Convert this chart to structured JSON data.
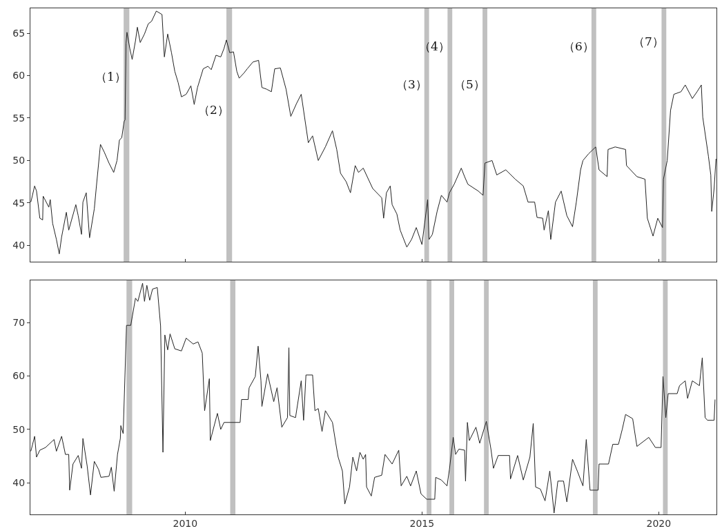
{
  "chart_data": [
    {
      "type": "line",
      "tick_labels": "y",
      "grid": false,
      "xlim": [
        2006.73,
        2021.22
      ],
      "xticks": [
        2010,
        2015,
        2020
      ],
      "ylim": [
        38.08,
        67.93
      ],
      "yticks": [
        40,
        45,
        50,
        55,
        60,
        65
      ],
      "bands": [
        {
          "axis": "x",
          "from": 2008.7,
          "to": 2008.82,
          "color": "#c0c0c0",
          "label": "（1）"
        },
        {
          "axis": "x",
          "from": 2010.87,
          "to": 2010.99,
          "color": "#c0c0c0",
          "label": "（2）"
        },
        {
          "axis": "x",
          "from": 2015.05,
          "to": 2015.15,
          "color": "#c0c0c0",
          "label": "（3）"
        },
        {
          "axis": "x",
          "from": 2015.54,
          "to": 2015.64,
          "color": "#c0c0c0",
          "label": "（4）"
        },
        {
          "axis": "x",
          "from": 2016.28,
          "to": 2016.38,
          "color": "#c0c0c0",
          "label": "（5）"
        },
        {
          "axis": "x",
          "from": 2018.58,
          "to": 2018.68,
          "color": "#c0c0c0",
          "label": "（6）"
        },
        {
          "axis": "x",
          "from": 2020.06,
          "to": 2020.16,
          "color": "#c0c0c0",
          "label": "（7）"
        }
      ],
      "series": [
        {
          "color": "#222222",
          "x": [
            2006.74,
            2006.82,
            2006.86,
            2006.93,
            2006.99,
            2007.0,
            2007.12,
            2007.15,
            2007.2,
            2007.28,
            2007.34,
            2007.39,
            2007.49,
            2007.54,
            2007.69,
            2007.74,
            2007.81,
            2007.84,
            2007.91,
            2007.98,
            2008.08,
            2008.12,
            2008.21,
            2008.29,
            2008.39,
            2008.49,
            2008.56,
            2008.61,
            2008.66,
            2008.71,
            2008.73,
            2008.75,
            2008.77,
            2008.83,
            2008.88,
            2008.95,
            2008.99,
            2009.05,
            2009.14,
            2009.22,
            2009.29,
            2009.39,
            2009.51,
            2009.56,
            2009.63,
            2009.71,
            2009.78,
            2009.85,
            2009.92,
            2010.02,
            2010.12,
            2010.19,
            2010.26,
            2010.38,
            2010.48,
            2010.55,
            2010.65,
            2010.75,
            2010.82,
            2010.87,
            2010.94,
            2011.02,
            2011.09,
            2011.14,
            2011.24,
            2011.31,
            2011.43,
            2011.55,
            2011.62,
            2011.72,
            2011.82,
            2011.89,
            2012.01,
            2012.13,
            2012.23,
            2012.35,
            2012.45,
            2012.6,
            2012.69,
            2012.81,
            2012.96,
            2013.11,
            2013.2,
            2013.28,
            2013.4,
            2013.49,
            2013.59,
            2013.66,
            2013.76,
            2013.96,
            2014.15,
            2014.19,
            2014.25,
            2014.33,
            2014.37,
            2014.47,
            2014.54,
            2014.68,
            2014.78,
            2014.88,
            2015.0,
            2015.12,
            2015.15,
            2015.22,
            2015.32,
            2015.41,
            2015.53,
            2015.58,
            2015.68,
            2015.83,
            2015.9,
            2015.97,
            2016.19,
            2016.29,
            2016.33,
            2016.48,
            2016.58,
            2016.77,
            2016.97,
            2017.14,
            2017.24,
            2017.38,
            2017.43,
            2017.55,
            2017.58,
            2017.67,
            2017.72,
            2017.82,
            2017.94,
            2018.06,
            2018.18,
            2018.26,
            2018.35,
            2018.4,
            2018.52,
            2018.67,
            2018.74,
            2018.91,
            2018.93,
            2019.08,
            2019.3,
            2019.32,
            2019.54,
            2019.71,
            2019.76,
            2019.88,
            2019.98,
            2020.08,
            2020.1,
            2020.18,
            2020.25,
            2020.32,
            2020.47,
            2020.56,
            2020.71,
            2020.81,
            2020.9,
            2020.93,
            2021.05,
            2021.1,
            2021.12,
            2021.17,
            2021.21
          ],
          "values": [
            45.1,
            47.0,
            46.4,
            43.2,
            43.0,
            45.8,
            44.5,
            45.4,
            42.6,
            40.7,
            39.0,
            41.0,
            43.9,
            41.8,
            44.8,
            43.5,
            41.3,
            45.1,
            46.2,
            40.9,
            44.3,
            46.7,
            51.9,
            51.0,
            49.7,
            48.6,
            50.0,
            52.4,
            52.7,
            54.6,
            54.8,
            63.8,
            65.1,
            63.2,
            61.9,
            64.1,
            65.7,
            63.9,
            64.9,
            66.1,
            66.4,
            67.6,
            67.2,
            62.2,
            64.9,
            62.7,
            60.5,
            59.2,
            57.5,
            57.8,
            58.8,
            56.6,
            58.6,
            60.8,
            61.1,
            60.7,
            62.4,
            62.2,
            63.2,
            64.2,
            62.7,
            62.8,
            60.5,
            59.7,
            60.3,
            60.8,
            61.6,
            61.8,
            58.6,
            58.4,
            58.1,
            60.8,
            60.9,
            58.4,
            55.2,
            56.7,
            57.8,
            52.1,
            52.9,
            50.0,
            51.6,
            53.5,
            51.3,
            48.5,
            47.5,
            46.2,
            49.4,
            48.6,
            49.1,
            46.7,
            45.6,
            43.2,
            46.2,
            47.0,
            44.8,
            43.7,
            41.8,
            39.8,
            40.7,
            42.1,
            40.1,
            45.4,
            40.7,
            41.3,
            44.0,
            45.9,
            45.1,
            46.2,
            47.2,
            49.1,
            48.1,
            47.2,
            46.4,
            45.9,
            49.7,
            50.0,
            48.3,
            48.9,
            47.8,
            47.0,
            45.1,
            45.1,
            43.3,
            43.2,
            41.8,
            44.1,
            40.7,
            45.1,
            46.4,
            43.5,
            42.2,
            45.1,
            48.9,
            50.0,
            50.8,
            51.6,
            48.9,
            48.1,
            51.3,
            51.6,
            51.3,
            49.4,
            48.1,
            47.8,
            43.2,
            41.1,
            43.2,
            42.1,
            47.8,
            50.0,
            55.9,
            57.8,
            58.1,
            58.9,
            57.3,
            58.1,
            58.9,
            55.1,
            50.5,
            48.3,
            44.0,
            46.7,
            50.2
          ]
        }
      ]
    },
    {
      "type": "line",
      "grid": false,
      "xlim": [
        2006.73,
        2021.22
      ],
      "xticks": [
        2010,
        2015,
        2020
      ],
      "ylim": [
        34.05,
        77.94
      ],
      "yticks": [
        40,
        50,
        60,
        70
      ],
      "bands": [
        {
          "axis": "x",
          "from": 2008.76,
          "to": 2008.88,
          "color": "#c0c0c0"
        },
        {
          "axis": "x",
          "from": 2010.95,
          "to": 2011.06,
          "color": "#c0c0c0"
        },
        {
          "axis": "x",
          "from": 2015.1,
          "to": 2015.2,
          "color": "#c0c0c0"
        },
        {
          "axis": "x",
          "from": 2015.58,
          "to": 2015.68,
          "color": "#c0c0c0"
        },
        {
          "axis": "x",
          "from": 2016.31,
          "to": 2016.41,
          "color": "#c0c0c0"
        },
        {
          "axis": "x",
          "from": 2018.61,
          "to": 2018.71,
          "color": "#c0c0c0"
        },
        {
          "axis": "x",
          "from": 2020.09,
          "to": 2020.19,
          "color": "#c0c0c0"
        }
      ],
      "series": [
        {
          "color": "#222222",
          "x": [
            2006.74,
            2006.82,
            2006.86,
            2006.93,
            2007.05,
            2007.23,
            2007.28,
            2007.39,
            2007.47,
            2007.54,
            2007.56,
            2007.63,
            2007.74,
            2007.81,
            2007.84,
            2007.93,
            2008.0,
            2008.08,
            2008.17,
            2008.22,
            2008.39,
            2008.44,
            2008.5,
            2008.57,
            2008.63,
            2008.64,
            2008.69,
            2008.76,
            2008.85,
            2008.95,
            2009.0,
            2009.1,
            2009.14,
            2009.19,
            2009.25,
            2009.31,
            2009.41,
            2009.48,
            2009.53,
            2009.57,
            2009.63,
            2009.68,
            2009.78,
            2009.92,
            2010.02,
            2010.17,
            2010.27,
            2010.36,
            2010.41,
            2010.51,
            2010.53,
            2010.68,
            2010.75,
            2010.82,
            2011.16,
            2011.19,
            2011.33,
            2011.35,
            2011.48,
            2011.54,
            2011.6,
            2011.62,
            2011.74,
            2011.87,
            2011.94,
            2012.04,
            2012.16,
            2012.19,
            2012.21,
            2012.33,
            2012.45,
            2012.5,
            2012.55,
            2012.69,
            2012.74,
            2012.81,
            2012.89,
            2012.96,
            2013.11,
            2013.18,
            2013.23,
            2013.32,
            2013.37,
            2013.47,
            2013.54,
            2013.62,
            2013.69,
            2013.76,
            2013.81,
            2013.83,
            2013.93,
            2014.0,
            2014.15,
            2014.22,
            2014.37,
            2014.51,
            2014.56,
            2014.68,
            2014.76,
            2014.88,
            2014.98,
            2015.1,
            2015.27,
            2015.29,
            2015.41,
            2015.53,
            2015.58,
            2015.66,
            2015.71,
            2015.78,
            2015.9,
            2015.92,
            2015.96,
            2016.0,
            2016.14,
            2016.22,
            2016.36,
            2016.46,
            2016.51,
            2016.61,
            2016.85,
            2016.87,
            2017.02,
            2017.14,
            2017.28,
            2017.35,
            2017.4,
            2017.5,
            2017.6,
            2017.7,
            2017.79,
            2017.87,
            2017.99,
            2018.06,
            2018.18,
            2018.28,
            2018.4,
            2018.47,
            2018.55,
            2018.72,
            2018.74,
            2018.94,
            2019.03,
            2019.15,
            2019.23,
            2019.3,
            2019.45,
            2019.54,
            2019.79,
            2019.93,
            2020.05,
            2020.09,
            2020.15,
            2020.2,
            2020.39,
            2020.44,
            2020.56,
            2020.61,
            2020.71,
            2020.86,
            2020.92,
            2020.98,
            2021.03,
            2021.17,
            2021.19
          ],
          "values": [
            45.9,
            48.7,
            44.8,
            46.1,
            46.6,
            48.1,
            45.9,
            48.7,
            45.3,
            45.3,
            38.6,
            43.5,
            45.1,
            42.7,
            48.3,
            43.1,
            37.7,
            44.0,
            42.5,
            41.0,
            41.2,
            42.9,
            38.4,
            45.3,
            48.3,
            50.7,
            49.2,
            69.5,
            69.5,
            74.6,
            74.0,
            77.4,
            74.0,
            77.0,
            74.2,
            76.3,
            76.6,
            69.4,
            45.7,
            67.7,
            64.9,
            67.9,
            65.1,
            64.7,
            67.1,
            66.0,
            66.4,
            64.3,
            53.5,
            59.5,
            47.9,
            53.0,
            50.0,
            51.3,
            51.3,
            55.6,
            55.6,
            57.8,
            59.9,
            65.6,
            59.1,
            54.3,
            60.4,
            55.2,
            57.8,
            50.4,
            52.2,
            65.3,
            52.6,
            52.2,
            59.1,
            51.7,
            60.2,
            60.2,
            53.5,
            53.9,
            49.6,
            53.5,
            51.3,
            47.4,
            44.8,
            42.2,
            36.0,
            39.2,
            44.8,
            42.2,
            45.7,
            44.4,
            45.3,
            39.2,
            37.5,
            41.0,
            41.4,
            45.3,
            43.5,
            46.1,
            39.4,
            41.2,
            39.4,
            42.2,
            37.9,
            36.9,
            36.9,
            41.0,
            40.5,
            39.4,
            42.5,
            48.5,
            45.3,
            46.3,
            46.1,
            40.3,
            51.3,
            47.9,
            50.4,
            47.4,
            51.5,
            46.1,
            42.7,
            45.1,
            45.1,
            40.7,
            45.1,
            40.5,
            44.8,
            51.1,
            39.2,
            38.8,
            36.6,
            42.2,
            34.3,
            40.3,
            40.3,
            36.4,
            44.4,
            42.2,
            39.4,
            48.1,
            38.6,
            38.6,
            43.5,
            43.5,
            47.2,
            47.2,
            50.0,
            52.8,
            52.0,
            46.8,
            48.5,
            46.6,
            46.6,
            59.9,
            52.2,
            56.7,
            56.7,
            58.2,
            59.1,
            55.8,
            59.1,
            58.2,
            63.4,
            52.2,
            51.7,
            51.7,
            55.6
          ]
        }
      ]
    }
  ]
}
